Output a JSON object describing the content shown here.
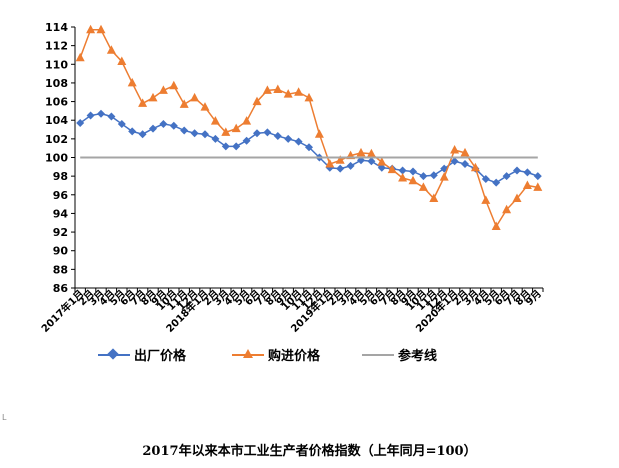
{
  "chart_data": {
    "type": "line",
    "title": "2017年以来本市工业生产者价格指数（上年同月=100）",
    "ylim": [
      86,
      114
    ],
    "yticks": [
      86,
      88,
      90,
      92,
      94,
      96,
      98,
      100,
      102,
      104,
      106,
      108,
      110,
      112,
      114
    ],
    "categories": [
      "2017年1月",
      "2月",
      "3月",
      "4月",
      "5月",
      "6月",
      "7月",
      "8月",
      "9月",
      "10月",
      "11月",
      "12月",
      "2018年1月",
      "2月",
      "3月",
      "4月",
      "5月",
      "6月",
      "7月",
      "8月",
      "9月",
      "10月",
      "11月",
      "12月",
      "2019年1月",
      "2月",
      "3月",
      "4月",
      "5月",
      "6月",
      "7月",
      "8月",
      "9月",
      "10月",
      "11月",
      "12月",
      "2020年1月",
      "2月",
      "3月",
      "4月",
      "5月",
      "6月",
      "7月",
      "8月",
      "9月"
    ],
    "series": [
      {
        "name": "出厂价格",
        "color": "#4472C4",
        "marker": "diamond",
        "values": [
          103.7,
          104.5,
          104.7,
          104.4,
          103.6,
          102.8,
          102.5,
          103.1,
          103.6,
          103.4,
          102.9,
          102.6,
          102.5,
          102.0,
          101.2,
          101.2,
          101.8,
          102.6,
          102.7,
          102.3,
          102.0,
          101.7,
          101.1,
          100.0,
          98.9,
          98.8,
          99.1,
          99.7,
          99.6,
          98.9,
          98.8,
          98.6,
          98.5,
          98.0,
          98.1,
          98.8,
          99.6,
          99.3,
          98.8,
          97.7,
          97.3,
          98.0,
          98.6,
          98.4,
          98.0
        ]
      },
      {
        "name": "购进价格",
        "color": "#ED7D31",
        "marker": "triangle",
        "values": [
          110.7,
          113.7,
          113.7,
          111.5,
          110.3,
          108.0,
          105.8,
          106.4,
          107.2,
          107.7,
          105.7,
          106.4,
          105.4,
          103.9,
          102.7,
          103.1,
          103.9,
          106.0,
          107.2,
          107.3,
          106.8,
          107.0,
          106.4,
          102.5,
          99.3,
          99.7,
          100.2,
          100.5,
          100.4,
          99.5,
          98.7,
          97.8,
          97.5,
          96.8,
          95.6,
          97.9,
          100.8,
          100.5,
          98.9,
          95.4,
          92.6,
          94.4,
          95.6,
          97.0,
          96.8
        ]
      },
      {
        "name": "参考线",
        "color": "#A5A5A5",
        "marker": "none",
        "constant": 100
      }
    ],
    "legend_position": "bottom",
    "grid": false
  },
  "legend": {
    "factory_label": "出厂价格",
    "purchase_label": "购进价格",
    "reference_label": "参考线"
  },
  "caption": "2017年以来本市工业生产者价格指数（上年同月=100）",
  "corner_mark": "L"
}
